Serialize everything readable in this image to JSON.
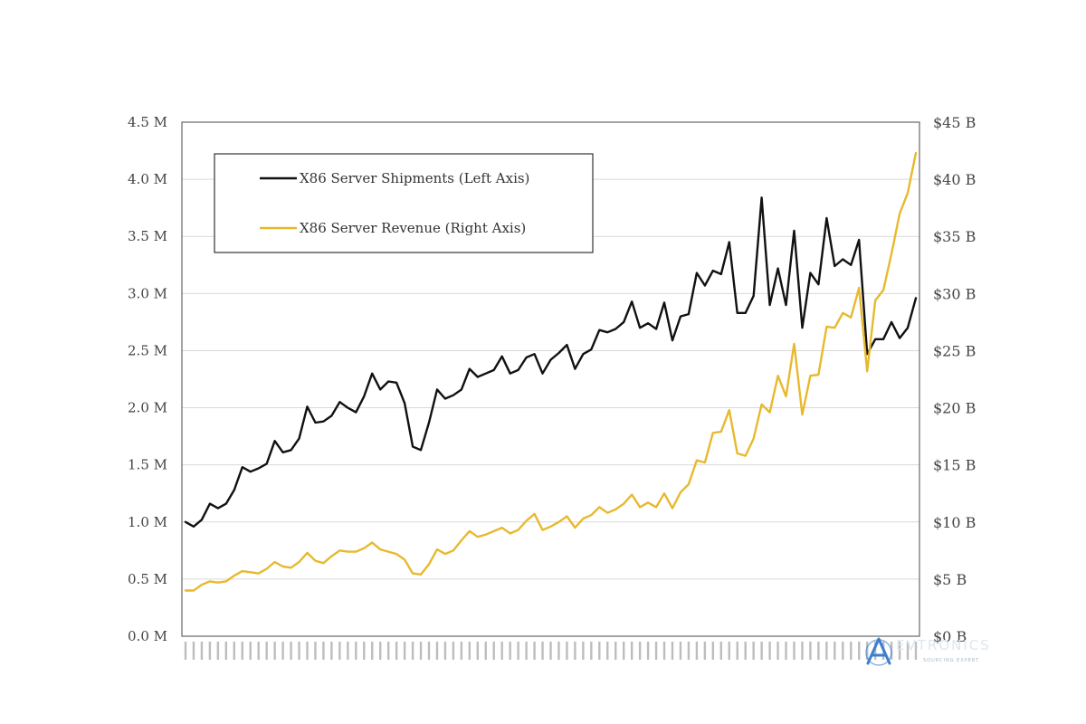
{
  "chart_data": {
    "type": "line",
    "title": "",
    "xlabel": "",
    "left_axis": {
      "ticks": [
        "0.0 M",
        "0.5 M",
        "1.0 M",
        "1.5 M",
        "2.0 M",
        "2.5 M",
        "3.0 M",
        "3.5 M",
        "4.0 M",
        "4.5 M"
      ],
      "ylim": [
        0,
        4.5
      ],
      "unit": "M"
    },
    "right_axis": {
      "ticks": [
        "$0 B",
        "$5 B",
        "$10 B",
        "$15 B",
        "$20 B",
        "$25 B",
        "$30 B",
        "$35 B",
        "$40 B",
        "$45 B"
      ],
      "ylim": [
        0,
        45
      ],
      "unit": "B"
    },
    "legend": {
      "position": "top-left",
      "entries": [
        "X86 Server Shipments (Left Axis)",
        "X86 Server Revenue (Right Axis)"
      ]
    },
    "grid": true,
    "series": [
      {
        "name": "X86 Server Shipments (Left Axis)",
        "axis": "left",
        "color": "#111111",
        "values": [
          1.0,
          0.96,
          1.02,
          1.16,
          1.12,
          1.16,
          1.28,
          1.48,
          1.44,
          1.47,
          1.51,
          1.71,
          1.61,
          1.63,
          1.73,
          2.01,
          1.87,
          1.88,
          1.93,
          2.05,
          2.0,
          1.96,
          2.1,
          2.3,
          2.16,
          2.23,
          2.22,
          2.04,
          1.66,
          1.63,
          1.87,
          2.16,
          2.08,
          2.11,
          2.16,
          2.34,
          2.27,
          2.3,
          2.33,
          2.45,
          2.3,
          2.33,
          2.44,
          2.47,
          2.3,
          2.42,
          2.48,
          2.55,
          2.34,
          2.47,
          2.51,
          2.68,
          2.66,
          2.69,
          2.75,
          2.93,
          2.7,
          2.74,
          2.69,
          2.92,
          2.59,
          2.8,
          2.82,
          3.18,
          3.07,
          3.2,
          3.17,
          3.45,
          2.83,
          2.83,
          2.98,
          3.84,
          2.9,
          3.22,
          2.9,
          3.55,
          2.7,
          3.18,
          3.08,
          3.66,
          3.24,
          3.3,
          3.25,
          3.47,
          2.47,
          2.6,
          2.6,
          2.75,
          2.61,
          2.7,
          2.96
        ]
      },
      {
        "name": "X86 Server Revenue (Right Axis)",
        "axis": "right",
        "color": "#e8b92e",
        "values": [
          4.0,
          4.0,
          4.5,
          4.8,
          4.7,
          4.8,
          5.3,
          5.7,
          5.6,
          5.5,
          5.9,
          6.5,
          6.1,
          6.0,
          6.5,
          7.3,
          6.6,
          6.4,
          7.0,
          7.5,
          7.4,
          7.4,
          7.7,
          8.2,
          7.6,
          7.4,
          7.2,
          6.7,
          5.5,
          5.4,
          6.3,
          7.6,
          7.2,
          7.5,
          8.4,
          9.2,
          8.7,
          8.9,
          9.2,
          9.5,
          9.0,
          9.3,
          10.1,
          10.7,
          9.3,
          9.6,
          10.0,
          10.5,
          9.5,
          10.3,
          10.6,
          11.3,
          10.8,
          11.1,
          11.6,
          12.4,
          11.3,
          11.7,
          11.3,
          12.5,
          11.2,
          12.6,
          13.3,
          15.4,
          15.2,
          17.8,
          17.9,
          19.8,
          16.0,
          15.8,
          17.3,
          20.3,
          19.6,
          22.8,
          21.0,
          25.6,
          19.4,
          22.8,
          22.9,
          27.1,
          27.0,
          28.3,
          27.9,
          30.5,
          23.2,
          29.4,
          30.3,
          33.5,
          37.0,
          38.8,
          42.3
        ]
      }
    ]
  },
  "watermark": {
    "brand": "EVTRONICS",
    "tagline": "SOURCING EXPERT"
  }
}
